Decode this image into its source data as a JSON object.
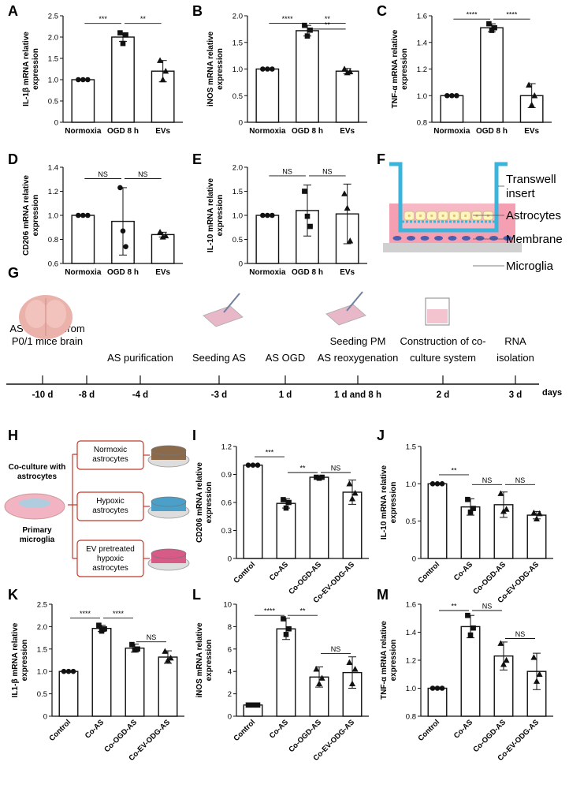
{
  "figure": {
    "panel_labels": [
      "A",
      "B",
      "C",
      "D",
      "E",
      "F",
      "G",
      "H",
      "I",
      "J",
      "K",
      "L",
      "M"
    ]
  },
  "chart_data": [
    {
      "panel": "A",
      "type": "bar",
      "categories": [
        "Normoxia",
        "OGD 8 h",
        "EVs"
      ],
      "values": [
        1.0,
        2.0,
        1.2
      ],
      "sd": [
        0.0,
        0.1,
        0.25
      ],
      "points": [
        [
          1,
          1,
          1
        ],
        [
          2.1,
          1.85,
          2.05
        ],
        [
          1.45,
          1.0,
          1.2
        ]
      ],
      "markers": [
        "circle",
        "square",
        "triangle"
      ],
      "ylabel": "IL-1β mRNA relative expression",
      "ylim": [
        0,
        2.5
      ],
      "ticks": [
        0,
        0.5,
        1.0,
        1.5,
        2.0,
        2.5
      ],
      "tick_labels": [
        "0",
        "0.5",
        "1.0",
        "1.5",
        "2.0",
        "2.5"
      ],
      "sig": [
        {
          "from": 0,
          "to": 1,
          "label": "***",
          "level": 2.32
        },
        {
          "from": 1,
          "to": 2,
          "label": "**",
          "level": 2.32
        }
      ]
    },
    {
      "panel": "B",
      "type": "bar",
      "categories": [
        "Normoxia",
        "OGD 8 h",
        "EVs"
      ],
      "values": [
        1.0,
        1.72,
        0.96
      ],
      "sd": [
        0.0,
        0.1,
        0.05
      ],
      "points": [
        [
          1,
          1,
          1
        ],
        [
          1.82,
          1.62,
          1.73
        ],
        [
          1.0,
          0.93,
          0.95
        ]
      ],
      "markers": [
        "circle",
        "square",
        "triangle"
      ],
      "ylabel": "iNOS mRNA relative expression",
      "ylim": [
        0,
        2.0
      ],
      "ticks": [
        0,
        0.5,
        1.0,
        1.5,
        2.0
      ],
      "tick_labels": [
        "0",
        "0.5",
        "1.0",
        "1.5",
        "2.0"
      ],
      "sig": [
        {
          "from": 0,
          "to": 1,
          "label": "****",
          "level": 1.86
        },
        {
          "from": 1,
          "to": 2,
          "label": "**",
          "level": 1.86
        },
        {
          "from": 1,
          "to": 2,
          "label": "**",
          "level": 1.75
        }
      ]
    },
    {
      "panel": "C",
      "type": "bar",
      "categories": [
        "Normoxia",
        "OGD 8 h",
        "EVs"
      ],
      "values": [
        1.0,
        1.51,
        1.0
      ],
      "sd": [
        0.0,
        0.03,
        0.09
      ],
      "points": [
        [
          1,
          1,
          1
        ],
        [
          1.54,
          1.49,
          1.51
        ],
        [
          1.08,
          0.93,
          1.0
        ]
      ],
      "markers": [
        "circle",
        "square",
        "triangle"
      ],
      "ylabel": "TNF-α mRNA relative expression",
      "ylim": [
        0.8,
        1.6
      ],
      "ticks": [
        0.8,
        1.0,
        1.2,
        1.4,
        1.6
      ],
      "tick_labels": [
        "0.8",
        "1.0",
        "1.2",
        "1.4",
        "1.6"
      ],
      "sig": [
        {
          "from": 0,
          "to": 1,
          "label": "****",
          "level": 1.575
        },
        {
          "from": 1,
          "to": 2,
          "label": "****",
          "level": 1.575
        }
      ]
    },
    {
      "panel": "D",
      "type": "bar",
      "categories": [
        "Normoxia",
        "OGD 8 h",
        "EVs"
      ],
      "values": [
        1.0,
        0.95,
        0.84
      ],
      "sd": [
        0.0,
        0.28,
        0.02
      ],
      "points": [
        [
          1,
          1,
          1
        ],
        [
          1.23,
          0.87,
          0.74
        ],
        [
          0.86,
          0.82,
          0.83
        ]
      ],
      "markers": [
        "circle",
        "circle",
        "triangle"
      ],
      "ylabel": "CD206 mRNA relative expression",
      "ylim": [
        0.6,
        1.4
      ],
      "ticks": [
        0.6,
        0.8,
        1.0,
        1.2,
        1.4
      ],
      "tick_labels": [
        "0.6",
        "0.8",
        "1.0",
        "1.2",
        "1.4"
      ],
      "sig": [
        {
          "from": 0,
          "to": 1,
          "label": "NS",
          "level": 1.305
        },
        {
          "from": 1,
          "to": 2,
          "label": "NS",
          "level": 1.305
        }
      ]
    },
    {
      "panel": "E",
      "type": "bar",
      "categories": [
        "Normoxia",
        "OGD 8 h",
        "EVs"
      ],
      "values": [
        1.0,
        1.1,
        1.03
      ],
      "sd": [
        0.0,
        0.53,
        0.62
      ],
      "points": [
        [
          1,
          1,
          1
        ],
        [
          1.5,
          0.98,
          0.77
        ],
        [
          1.45,
          1.15,
          0.47
        ]
      ],
      "markers": [
        "circle",
        "square",
        "triangle"
      ],
      "ylabel": "IL-10 mRNA relative expression",
      "ylim": [
        0,
        2.0
      ],
      "ticks": [
        0,
        0.5,
        1.0,
        1.5,
        2.0
      ],
      "tick_labels": [
        "0",
        "0.5",
        "1.0",
        "1.5",
        "2.0"
      ],
      "sig": [
        {
          "from": 0,
          "to": 1,
          "label": "NS",
          "level": 1.82
        },
        {
          "from": 1,
          "to": 2,
          "label": "NS",
          "level": 1.82
        }
      ]
    },
    {
      "panel": "I",
      "type": "bar",
      "categories": [
        "Control",
        "Co-AS",
        "Co-OGD-AS",
        "Co-EV-ODG-AS"
      ],
      "values": [
        1.0,
        0.59,
        0.87,
        0.71
      ],
      "sd": [
        0.0,
        0.05,
        0.01,
        0.13
      ],
      "points": [
        [
          1,
          1,
          1
        ],
        [
          0.63,
          0.54,
          0.6
        ],
        [
          0.87,
          0.86,
          0.87
        ],
        [
          0.8,
          0.64,
          0.7
        ]
      ],
      "markers": [
        "circle",
        "square",
        "square",
        "triangle"
      ],
      "ylabel": "CD206 mRNA relative expression",
      "ylim": [
        0,
        1.2
      ],
      "ticks": [
        0,
        0.3,
        0.6,
        0.9,
        1.2
      ],
      "tick_labels": [
        "0",
        "0.3",
        "0.6",
        "0.9",
        "1.2"
      ],
      "sig": [
        {
          "from": 0,
          "to": 1,
          "label": "***",
          "level": 1.09
        },
        {
          "from": 1,
          "to": 2,
          "label": "**",
          "level": 0.92
        },
        {
          "from": 2,
          "to": 3,
          "label": "NS",
          "level": 0.92
        }
      ]
    },
    {
      "panel": "J",
      "type": "bar",
      "categories": [
        "Control",
        "Co-AS",
        "Co-OGD-AS",
        "Co-EV-ODG-AS"
      ],
      "values": [
        1.0,
        0.69,
        0.72,
        0.58
      ],
      "sd": [
        0.0,
        0.11,
        0.17,
        0.05
      ],
      "points": [
        [
          1,
          1,
          1
        ],
        [
          0.79,
          0.62,
          0.67
        ],
        [
          0.87,
          0.63,
          0.66
        ],
        [
          0.61,
          0.53,
          0.6
        ]
      ],
      "markers": [
        "circle",
        "square",
        "triangle",
        "triangle"
      ],
      "ylabel": "IL-10 mRNA relative expression",
      "ylim": [
        0,
        1.5
      ],
      "ticks": [
        0,
        0.5,
        1.0,
        1.5
      ],
      "tick_labels": [
        "0",
        "0.5",
        "1.0",
        "1.5"
      ],
      "sig": [
        {
          "from": 0,
          "to": 1,
          "label": "**",
          "level": 1.12
        },
        {
          "from": 1,
          "to": 2,
          "label": "NS",
          "level": 0.99
        },
        {
          "from": 2,
          "to": 3,
          "label": "NS",
          "level": 0.99
        }
      ]
    },
    {
      "panel": "K",
      "type": "bar",
      "categories": [
        "Control",
        "Co-AS",
        "Co-OGD-AS",
        "Co-EV-ODG-AS"
      ],
      "values": [
        1.0,
        1.96,
        1.52,
        1.32
      ],
      "sd": [
        0.0,
        0.07,
        0.09,
        0.14
      ],
      "points": [
        [
          1,
          1,
          1
        ],
        [
          2.03,
          1.9,
          1.95
        ],
        [
          1.6,
          1.48,
          1.5
        ],
        [
          1.45,
          1.25,
          1.3
        ]
      ],
      "markers": [
        "circle",
        "square",
        "square",
        "triangle"
      ],
      "ylabel": "IL1-β mRNA relative expression",
      "ylim": [
        0,
        2.5
      ],
      "ticks": [
        0,
        0.5,
        1.0,
        1.5,
        2.0,
        2.5
      ],
      "tick_labels": [
        "0",
        "0.5",
        "1.0",
        "1.5",
        "2.0",
        "2.5"
      ],
      "sig": [
        {
          "from": 0,
          "to": 1,
          "label": "****",
          "level": 2.19
        },
        {
          "from": 1,
          "to": 2,
          "label": "****",
          "level": 2.19
        },
        {
          "from": 2,
          "to": 3,
          "label": "NS",
          "level": 1.66
        }
      ]
    },
    {
      "panel": "L",
      "type": "bar",
      "categories": [
        "Control",
        "Co-AS",
        "Co-OGD-AS",
        "Co-EV-ODG-AS"
      ],
      "values": [
        1.0,
        7.8,
        3.5,
        3.9
      ],
      "sd": [
        0.0,
        0.95,
        0.9,
        1.4
      ],
      "points": [
        [
          1,
          1,
          1
        ],
        [
          8.7,
          7.3,
          7.8
        ],
        [
          4.2,
          2.9,
          3.4
        ],
        [
          4.8,
          2.9,
          4.2
        ]
      ],
      "markers": [
        "square",
        "square",
        "triangle",
        "triangle"
      ],
      "ylabel": "iNOS mRNA relative expression",
      "ylim": [
        0,
        10
      ],
      "ticks": [
        0,
        2,
        4,
        6,
        8,
        10
      ],
      "tick_labels": [
        "0",
        "2",
        "4",
        "6",
        "8",
        "10"
      ],
      "sig": [
        {
          "from": 0,
          "to": 1,
          "label": "****",
          "level": 9.0
        },
        {
          "from": 1,
          "to": 2,
          "label": "**",
          "level": 9.0
        },
        {
          "from": 2,
          "to": 3,
          "label": "NS",
          "level": 5.6
        }
      ]
    },
    {
      "panel": "M",
      "type": "bar",
      "categories": [
        "Control",
        "Co-AS",
        "Co-OGD-AS",
        "Co-EV-ODG-AS"
      ],
      "values": [
        1.0,
        1.44,
        1.23,
        1.12
      ],
      "sd": [
        0.0,
        0.08,
        0.1,
        0.13
      ],
      "points": [
        [
          1,
          1,
          1
        ],
        [
          1.52,
          1.38,
          1.43
        ],
        [
          1.32,
          1.17,
          1.2
        ],
        [
          1.22,
          1.05,
          1.1
        ]
      ],
      "markers": [
        "circle",
        "square",
        "triangle",
        "triangle"
      ],
      "ylabel": "TNF-α mRNA relative expression",
      "ylim": [
        0.8,
        1.6
      ],
      "ticks": [
        0.8,
        1.0,
        1.2,
        1.4,
        1.6
      ],
      "tick_labels": [
        "0.8",
        "1.0",
        "1.2",
        "1.4",
        "1.6"
      ],
      "sig": [
        {
          "from": 0,
          "to": 1,
          "label": "**",
          "level": 1.555
        },
        {
          "from": 1,
          "to": 2,
          "label": "NS",
          "level": 1.555
        },
        {
          "from": 2,
          "to": 3,
          "label": "NS",
          "level": 1.355
        }
      ]
    }
  ],
  "panel_f": {
    "labels": [
      "Transwell",
      "insert",
      "Astrocytes",
      "Membrane",
      "Microglia"
    ],
    "colors": {
      "tube": "#3bb4dc",
      "medium": "#f5a0b2",
      "cell": "#fff5c0",
      "microglia": "#4a5fb0",
      "base": "#d0d0d0"
    }
  },
  "panel_g": {
    "events": [
      {
        "lines": [
          "AS isolated from",
          "P0/1 mice brain"
        ],
        "day": "-10 d"
      },
      {
        "lines": [],
        "day": "-8 d"
      },
      {
        "lines": [
          "AS purification"
        ],
        "day": "-4 d"
      },
      {
        "lines": [
          "Seeding AS"
        ],
        "day": "-3 d"
      },
      {
        "lines": [
          "AS OGD"
        ],
        "day": "1 d"
      },
      {
        "lines": [
          "Seeding PM",
          "AS reoxygenation"
        ],
        "day": "1 d and 8 h"
      },
      {
        "lines": [
          "Construction of co-",
          "culture system"
        ],
        "day": "2 d"
      },
      {
        "lines": [
          "RNA",
          "isolation"
        ],
        "day": "3 d"
      }
    ],
    "axis_label": "days",
    "colors": {
      "brain": "#eab2ab",
      "dish": "#e9b8c8",
      "cuvette": "#f3c3d0"
    }
  },
  "panel_h": {
    "left_lines": [
      "Co-culture with",
      "astrocytes"
    ],
    "bottom_lines": [
      "Primary",
      "microglia"
    ],
    "boxes": [
      {
        "lines": [
          "Normoxic",
          "astrocytes"
        ],
        "color": "#8a6a4a"
      },
      {
        "lines": [
          "Hypoxic",
          "astrocytes"
        ],
        "color": "#4aa0c8"
      },
      {
        "lines": [
          "EV pretreated",
          "hypoxic",
          "astrocytes"
        ],
        "color": "#d85a86"
      }
    ],
    "border_color": "#c0392b"
  }
}
